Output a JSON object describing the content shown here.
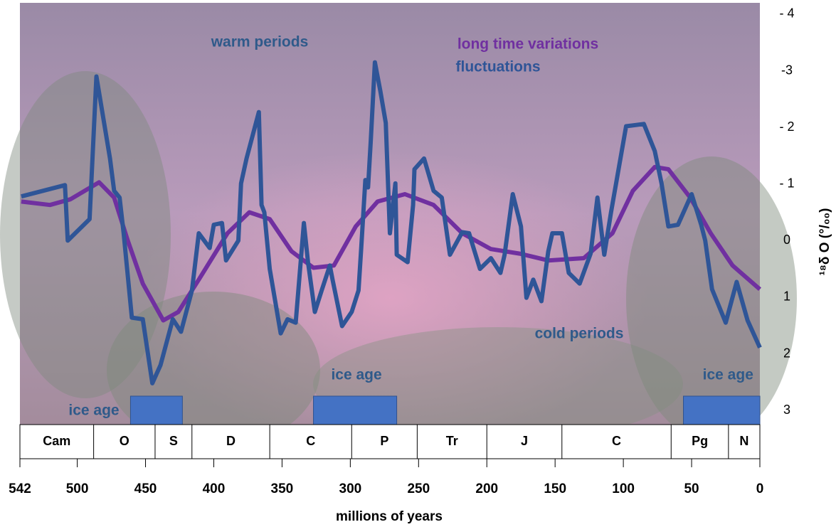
{
  "chart_data": {
    "type": "line",
    "xlabel": "millions of years",
    "ylabel": "¹⁸δ O (°/₀₀)",
    "xlim": [
      542,
      0
    ],
    "ylim": [
      3.25,
      -4.2
    ],
    "xticks": [
      542,
      500,
      450,
      400,
      350,
      300,
      250,
      200,
      150,
      100,
      50,
      0
    ],
    "yticks": [
      {
        "value": -4,
        "label": "- 4"
      },
      -3,
      {
        "value": -2,
        "label": "- 2"
      },
      {
        "value": -1,
        "label": "- 1"
      },
      0,
      1,
      2,
      3
    ],
    "series": [
      {
        "name": "long time variations",
        "color": "#7030a0",
        "x": [
          541,
          520,
          505,
          484,
          473,
          463,
          452,
          437,
          426,
          411,
          390,
          374,
          359,
          343,
          327,
          312,
          296,
          280,
          260,
          239,
          218,
          197,
          176,
          155,
          129,
          108,
          93,
          77,
          67,
          51,
          36,
          20,
          0
        ],
        "values": [
          -0.69,
          -0.63,
          -0.73,
          -1.03,
          -0.76,
          0,
          0.76,
          1.41,
          1.26,
          0.69,
          -0.13,
          -0.5,
          -0.38,
          0.19,
          0.48,
          0.44,
          -0.25,
          -0.69,
          -0.82,
          -0.63,
          -0.13,
          0.15,
          0.23,
          0.35,
          0.31,
          -0.13,
          -0.88,
          -1.3,
          -1.26,
          -0.76,
          -0.13,
          0.44,
          0.86
        ]
      },
      {
        "name": "fluctuations",
        "color": "#2f5597",
        "x": [
          541,
          509,
          507,
          491,
          486,
          476,
          473,
          469,
          466,
          460,
          452,
          445,
          439,
          430,
          424,
          416,
          411,
          403,
          400,
          394,
          391,
          382,
          380,
          376,
          367,
          365,
          363,
          359,
          351,
          346,
          340,
          334,
          331,
          326,
          321,
          315,
          313,
          306,
          299,
          294,
          292,
          289,
          287,
          285,
          282,
          278,
          274,
          271,
          267,
          266,
          258,
          254,
          253,
          246,
          239,
          233,
          227,
          218,
          213,
          209,
          205,
          197,
          190,
          187,
          181,
          175,
          171,
          166,
          160,
          155,
          152,
          145,
          140,
          132,
          124,
          119,
          114,
          109,
          98,
          85,
          77,
          72,
          67,
          60,
          50,
          43,
          40,
          35,
          25,
          17,
          9,
          0
        ],
        "values": [
          -0.78,
          -0.98,
          0,
          -0.38,
          -2.9,
          -1.45,
          -0.88,
          -0.76,
          -0.13,
          1.36,
          1.39,
          2.52,
          2.2,
          1.39,
          1.61,
          0.88,
          -0.13,
          0.13,
          -0.28,
          -0.31,
          0.35,
          0,
          -1.01,
          -1.45,
          -2.27,
          -0.63,
          -0.5,
          0.5,
          1.64,
          1.39,
          1.45,
          -0.31,
          0.38,
          1.26,
          0.88,
          0.44,
          0.69,
          1.51,
          1.26,
          0.88,
          0.13,
          -1.07,
          -0.94,
          -1.76,
          -3.15,
          -2.64,
          -2.08,
          -0.13,
          -1.01,
          0.25,
          0.38,
          -0.63,
          -1.26,
          -1.45,
          -0.88,
          -0.76,
          0.25,
          -0.15,
          -0.13,
          0.19,
          0.5,
          0.31,
          0.57,
          0.25,
          -0.82,
          -0.25,
          1.01,
          0.69,
          1.07,
          0.19,
          -0.13,
          -0.13,
          0.57,
          0.76,
          0.23,
          -0.76,
          0.25,
          -0.5,
          -2.02,
          -2.06,
          -1.58,
          -1.01,
          -0.25,
          -0.28,
          -0.82,
          -0.28,
          0,
          0.86,
          1.45,
          0.73,
          1.41,
          1.89
        ]
      }
    ],
    "annotations": [
      {
        "text": "warm periods",
        "color": "#2f5a8a"
      },
      {
        "text": "cold periods",
        "color": "#2f5a8a"
      }
    ],
    "ice_ages": [
      {
        "label": "ice age",
        "start": 461,
        "end": 423,
        "color": "#4472c4"
      },
      {
        "label": "ice age",
        "start": 327,
        "end": 266,
        "color": "#4472c4"
      },
      {
        "label": "ice age",
        "start": 56,
        "end": 0,
        "color": "#4472c4"
      }
    ],
    "periods": [
      {
        "label": "Cam",
        "start": 542,
        "end": 488
      },
      {
        "label": "O",
        "start": 488,
        "end": 443
      },
      {
        "label": "S",
        "start": 443,
        "end": 416
      },
      {
        "label": "D",
        "start": 416,
        "end": 359
      },
      {
        "label": "C",
        "start": 359,
        "end": 299
      },
      {
        "label": "P",
        "start": 299,
        "end": 251
      },
      {
        "label": "Tr",
        "start": 251,
        "end": 200
      },
      {
        "label": "J",
        "start": 200,
        "end": 145
      },
      {
        "label": "C",
        "start": 145,
        "end": 65
      },
      {
        "label": "Pg",
        "start": 65,
        "end": 23
      },
      {
        "label": "N",
        "start": 23,
        "end": 0
      }
    ]
  }
}
